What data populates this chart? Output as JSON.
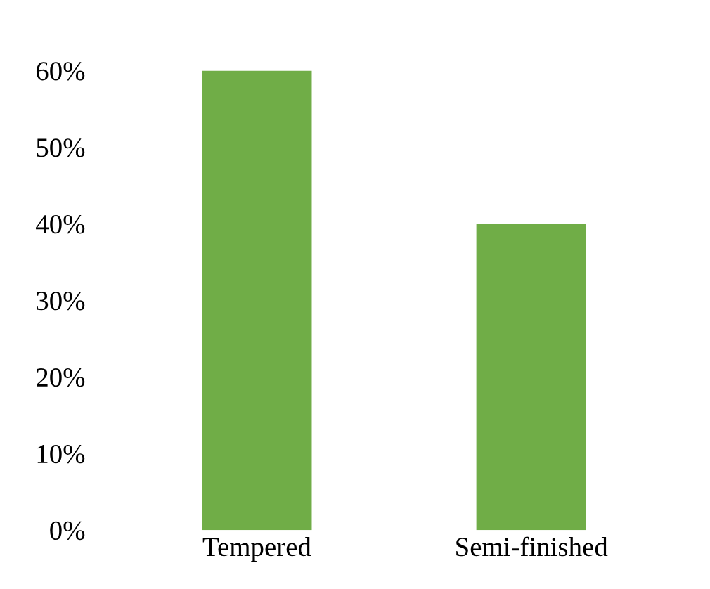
{
  "chart_data": {
    "type": "bar",
    "categories": [
      "Tempered",
      "Semi-finished"
    ],
    "values": [
      60,
      40
    ],
    "color": "#70ad47",
    "ylim": [
      0,
      60
    ],
    "yticks": [
      {
        "value": 0,
        "label": "0%"
      },
      {
        "value": 10,
        "label": "10%"
      },
      {
        "value": 20,
        "label": "20%"
      },
      {
        "value": 30,
        "label": "30%"
      },
      {
        "value": 40,
        "label": "40%"
      },
      {
        "value": 50,
        "label": "50%"
      },
      {
        "value": 60,
        "label": "60%"
      }
    ],
    "grid": false
  }
}
